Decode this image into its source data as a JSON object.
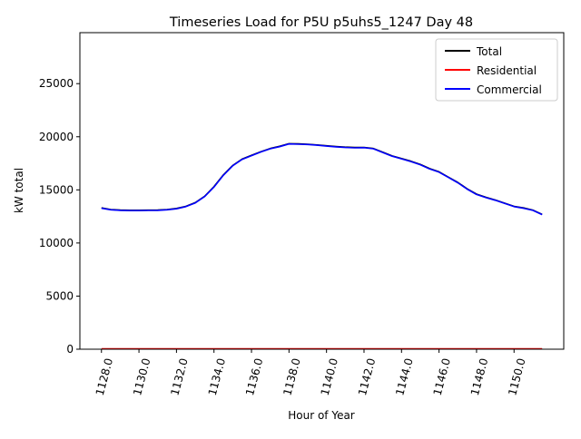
{
  "chart_data": {
    "type": "line",
    "title": "Timeseries Load for P5U p5uhs5_1247  Day 48",
    "xlabel": "Hour of Year",
    "ylabel": "kW total",
    "xlim": [
      1126.85,
      1152.65
    ],
    "ylim": [
      0,
      29800
    ],
    "xticks": [
      1128,
      1130,
      1132,
      1134,
      1136,
      1138,
      1140,
      1142,
      1144,
      1146,
      1148,
      1150
    ],
    "xtick_labels": [
      "1128.0",
      "1130.0",
      "1132.0",
      "1134.0",
      "1136.0",
      "1138.0",
      "1140.0",
      "1142.0",
      "1144.0",
      "1146.0",
      "1148.0",
      "1150.0"
    ],
    "yticks": [
      0,
      5000,
      10000,
      15000,
      20000,
      25000
    ],
    "ytick_labels": [
      "0",
      "5000",
      "10000",
      "15000",
      "20000",
      "25000"
    ],
    "grid": false,
    "legend_position": "top-right",
    "x": [
      1128.0,
      1128.5,
      1129.0,
      1129.5,
      1130.0,
      1130.5,
      1131.0,
      1131.5,
      1132.0,
      1132.5,
      1133.0,
      1133.5,
      1134.0,
      1134.5,
      1135.0,
      1135.5,
      1136.0,
      1136.5,
      1137.0,
      1137.5,
      1138.0,
      1138.5,
      1139.0,
      1139.5,
      1140.0,
      1140.5,
      1141.0,
      1141.5,
      1142.0,
      1142.5,
      1143.0,
      1143.5,
      1144.0,
      1144.5,
      1145.0,
      1145.5,
      1146.0,
      1146.5,
      1147.0,
      1147.5,
      1148.0,
      1148.5,
      1149.0,
      1149.5,
      1150.0,
      1150.5,
      1151.0,
      1151.5
    ],
    "series": [
      {
        "name": "Total",
        "color": "#000000",
        "values": [
          13300,
          13150,
          13100,
          13080,
          13080,
          13090,
          13100,
          13150,
          13250,
          13450,
          13800,
          14400,
          15300,
          16400,
          17300,
          17900,
          18250,
          18600,
          18900,
          19100,
          19350,
          19330,
          19300,
          19230,
          19150,
          19080,
          19020,
          18990,
          19000,
          18900,
          18550,
          18200,
          17950,
          17700,
          17400,
          17000,
          16700,
          16200,
          15700,
          15100,
          14600,
          14300,
          14050,
          13750,
          13450,
          13300,
          13100,
          12700
        ]
      },
      {
        "name": "Residential",
        "color": "#ff0000",
        "values": [
          30,
          30,
          30,
          30,
          30,
          30,
          30,
          30,
          30,
          30,
          30,
          30,
          30,
          30,
          30,
          30,
          30,
          30,
          30,
          30,
          30,
          30,
          30,
          30,
          30,
          30,
          30,
          30,
          30,
          30,
          30,
          30,
          30,
          30,
          30,
          30,
          30,
          30,
          30,
          30,
          30,
          30,
          30,
          30,
          30,
          30,
          30,
          30
        ]
      },
      {
        "name": "Commercial",
        "color": "#0000ff",
        "values": [
          13270,
          13120,
          13070,
          13050,
          13050,
          13060,
          13070,
          13120,
          13220,
          13420,
          13770,
          14370,
          15270,
          16370,
          17270,
          17870,
          18220,
          18570,
          18870,
          19070,
          19320,
          19300,
          19270,
          19200,
          19120,
          19050,
          18990,
          18960,
          18970,
          18870,
          18520,
          18170,
          17920,
          17670,
          17370,
          16970,
          16670,
          16170,
          15670,
          15070,
          14570,
          14270,
          14020,
          13720,
          13420,
          13270,
          13070,
          12670
        ]
      }
    ]
  }
}
